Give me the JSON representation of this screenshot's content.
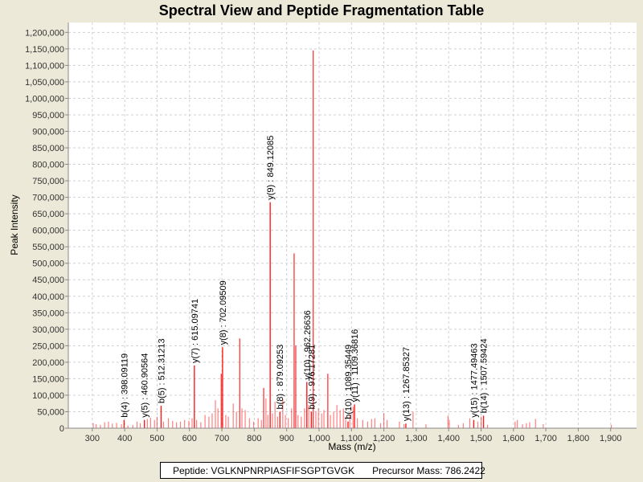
{
  "chart_data": {
    "type": "bar",
    "title": "Spectral View and Peptide Fragmentation Table",
    "xlabel": "Mass (m/z)",
    "ylabel": "Peak Intensity",
    "xlim": [
      226,
      1980
    ],
    "ylim": [
      0,
      1230000
    ],
    "xticks": [
      300,
      400,
      500,
      600,
      700,
      800,
      900,
      1000,
      1100,
      1200,
      1300,
      1400,
      1500,
      1600,
      1700,
      1800,
      1900
    ],
    "yticks": [
      0,
      50000,
      100000,
      150000,
      200000,
      250000,
      300000,
      350000,
      400000,
      450000,
      500000,
      550000,
      600000,
      650000,
      700000,
      750000,
      800000,
      850000,
      900000,
      950000,
      1000000,
      1050000,
      1100000,
      1150000,
      1200000
    ],
    "grid": true,
    "peak_color": "#ff0000",
    "annotated_peaks": [
      {
        "mz": 398.09119,
        "intensity": 25000,
        "label": "b(4) : 398.09119"
      },
      {
        "mz": 460.90564,
        "intensity": 25000,
        "label": "y(5) : 460.90564"
      },
      {
        "mz": 512.31213,
        "intensity": 68000,
        "label": "b(5) : 512.31213"
      },
      {
        "mz": 615.09741,
        "intensity": 190000,
        "label": "y(7) : 615.09741"
      },
      {
        "mz": 702.09509,
        "intensity": 245000,
        "label": "y(8) : 702.09509"
      },
      {
        "mz": 849.12085,
        "intensity": 685000,
        "label": "y(9) : 849.12085"
      },
      {
        "mz": 879.09253,
        "intensity": 50000,
        "label": "b(8) : 879.09253"
      },
      {
        "mz": 962.26636,
        "intensity": 140000,
        "label": "y(10) : 962.26636"
      },
      {
        "mz": 976.17281,
        "intensity": 50000,
        "label": "b(9) : 976.17281"
      },
      {
        "mz": 1089.35449,
        "intensity": 20000,
        "label": "b(10) : 1089.35449"
      },
      {
        "mz": 1109.36816,
        "intensity": 72000,
        "label": "y(11) : 1109.36816"
      },
      {
        "mz": 1267.85327,
        "intensity": 14000,
        "label": "y(13) : 1267.85327"
      },
      {
        "mz": 1477.49463,
        "intensity": 25000,
        "label": "y(15) : 1477.49463"
      },
      {
        "mz": 1507.59424,
        "intensity": 38000,
        "label": "b(14) : 1507.59424"
      }
    ],
    "peaks": [
      [
        303,
        15000
      ],
      [
        312,
        12000
      ],
      [
        325,
        10000
      ],
      [
        338,
        18000
      ],
      [
        350,
        20000
      ],
      [
        362,
        14000
      ],
      [
        375,
        16000
      ],
      [
        390,
        12000
      ],
      [
        410,
        8000
      ],
      [
        425,
        10000
      ],
      [
        438,
        20000
      ],
      [
        448,
        15000
      ],
      [
        470,
        28000
      ],
      [
        480,
        32000
      ],
      [
        492,
        25000
      ],
      [
        500,
        35000
      ],
      [
        520,
        20000
      ],
      [
        535,
        30000
      ],
      [
        548,
        22000
      ],
      [
        560,
        18000
      ],
      [
        572,
        20000
      ],
      [
        585,
        25000
      ],
      [
        598,
        22000
      ],
      [
        608,
        30000
      ],
      [
        622,
        25000
      ],
      [
        635,
        18000
      ],
      [
        648,
        40000
      ],
      [
        660,
        35000
      ],
      [
        670,
        45000
      ],
      [
        680,
        85000
      ],
      [
        688,
        60000
      ],
      [
        698,
        165000
      ],
      [
        712,
        40000
      ],
      [
        720,
        35000
      ],
      [
        735,
        75000
      ],
      [
        745,
        50000
      ],
      [
        755,
        272000
      ],
      [
        762,
        60000
      ],
      [
        772,
        55000
      ],
      [
        785,
        30000
      ],
      [
        798,
        20000
      ],
      [
        812,
        30000
      ],
      [
        822,
        25000
      ],
      [
        829,
        122000
      ],
      [
        836,
        90000
      ],
      [
        842,
        40000
      ],
      [
        856,
        45000
      ],
      [
        864,
        80000
      ],
      [
        872,
        35000
      ],
      [
        888,
        88000
      ],
      [
        896,
        40000
      ],
      [
        905,
        30000
      ],
      [
        915,
        60000
      ],
      [
        923,
        530000
      ],
      [
        928,
        250000
      ],
      [
        935,
        40000
      ],
      [
        945,
        35000
      ],
      [
        955,
        60000
      ],
      [
        968,
        70000
      ],
      [
        982,
        1145000
      ],
      [
        990,
        50000
      ],
      [
        998,
        60000
      ],
      [
        1008,
        45000
      ],
      [
        1015,
        55000
      ],
      [
        1027,
        165000
      ],
      [
        1035,
        40000
      ],
      [
        1045,
        50000
      ],
      [
        1055,
        70000
      ],
      [
        1065,
        55000
      ],
      [
        1075,
        60000
      ],
      [
        1082,
        35000
      ],
      [
        1095,
        40000
      ],
      [
        1105,
        65000
      ],
      [
        1118,
        30000
      ],
      [
        1135,
        25000
      ],
      [
        1150,
        20000
      ],
      [
        1162,
        28000
      ],
      [
        1172,
        30000
      ],
      [
        1190,
        15000
      ],
      [
        1200,
        45000
      ],
      [
        1210,
        25000
      ],
      [
        1248,
        20000
      ],
      [
        1262,
        12000
      ],
      [
        1290,
        50000
      ],
      [
        1330,
        12000
      ],
      [
        1398,
        38000
      ],
      [
        1402,
        25000
      ],
      [
        1430,
        10000
      ],
      [
        1445,
        15000
      ],
      [
        1465,
        30000
      ],
      [
        1490,
        20000
      ],
      [
        1500,
        35000
      ],
      [
        1520,
        10000
      ],
      [
        1605,
        20000
      ],
      [
        1612,
        25000
      ],
      [
        1628,
        12000
      ],
      [
        1640,
        15000
      ],
      [
        1650,
        18000
      ],
      [
        1668,
        28000
      ],
      [
        1692,
        12000
      ],
      [
        1902,
        10000
      ]
    ]
  },
  "legend": {
    "peptide": "Peptide: VGLKNPNRPIASFIFSGPTGVGK",
    "precursor": "Precursor Mass: 786.2422"
  }
}
